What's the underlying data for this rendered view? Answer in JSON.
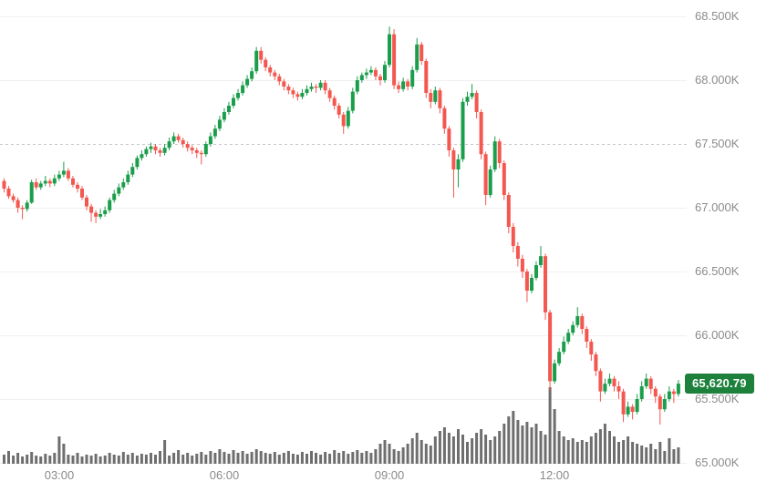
{
  "chart_data": {
    "type": "candlestick",
    "title": "",
    "interval_minutes": 5,
    "start_time": "02:00",
    "end_time": "14:15",
    "grid": "horizontal-only",
    "last_price": 65620.79,
    "last_price_label": "65,620.79",
    "open_price_line": {
      "value": 67500,
      "style": "dashed"
    },
    "y_axis": {
      "min": 65000,
      "max": 68500,
      "ticks": [
        {
          "value": 68500,
          "label": "68.500K"
        },
        {
          "value": 68000,
          "label": "68.000K"
        },
        {
          "value": 67500,
          "label": "67.500K"
        },
        {
          "value": 67000,
          "label": "67.000K"
        },
        {
          "value": 66500,
          "label": "66.500K"
        },
        {
          "value": 66000,
          "label": "66.000K"
        },
        {
          "value": 65500,
          "label": "65.500K"
        },
        {
          "value": 65000,
          "label": "65.000K"
        }
      ]
    },
    "x_axis": {
      "ticks": [
        {
          "index": 12,
          "label": "03:00"
        },
        {
          "index": 48,
          "label": "06:00"
        },
        {
          "index": 84,
          "label": "09:00"
        },
        {
          "index": 120,
          "label": "12:00"
        }
      ]
    },
    "candles": [
      [
        67210,
        67230,
        67120,
        67150
      ],
      [
        67150,
        67170,
        67070,
        67090
      ],
      [
        67090,
        67110,
        67040,
        67060
      ],
      [
        67060,
        67080,
        66960,
        67000
      ],
      [
        67000,
        67020,
        66910,
        66990
      ],
      [
        66990,
        67060,
        66970,
        67040
      ],
      [
        67040,
        67220,
        67030,
        67200
      ],
      [
        67200,
        67230,
        67140,
        67160
      ],
      [
        67160,
        67210,
        67140,
        67190
      ],
      [
        67190,
        67250,
        67170,
        67210
      ],
      [
        67210,
        67230,
        67160,
        67190
      ],
      [
        67190,
        67260,
        67170,
        67230
      ],
      [
        67230,
        67290,
        67210,
        67260
      ],
      [
        67260,
        67360,
        67240,
        67290
      ],
      [
        67290,
        67310,
        67210,
        67230
      ],
      [
        67230,
        67250,
        67160,
        67180
      ],
      [
        67180,
        67200,
        67120,
        67150
      ],
      [
        67150,
        67170,
        67060,
        67080
      ],
      [
        67080,
        67100,
        66980,
        67010
      ],
      [
        67010,
        67030,
        66890,
        66960
      ],
      [
        66960,
        66980,
        66880,
        66930
      ],
      [
        66930,
        66990,
        66910,
        66950
      ],
      [
        66950,
        67010,
        66930,
        66980
      ],
      [
        66980,
        67080,
        66960,
        67060
      ],
      [
        67060,
        67140,
        67040,
        67110
      ],
      [
        67110,
        67190,
        67090,
        67160
      ],
      [
        67160,
        67230,
        67140,
        67200
      ],
      [
        67200,
        67290,
        67180,
        67260
      ],
      [
        67260,
        67350,
        67240,
        67320
      ],
      [
        67320,
        67410,
        67300,
        67390
      ],
      [
        67390,
        67450,
        67370,
        67420
      ],
      [
        67420,
        67480,
        67400,
        67460
      ],
      [
        67460,
        67510,
        67430,
        67480
      ],
      [
        67480,
        67500,
        67420,
        67450
      ],
      [
        67450,
        67470,
        67400,
        67430
      ],
      [
        67430,
        67500,
        67410,
        67470
      ],
      [
        67470,
        67550,
        67450,
        67520
      ],
      [
        67520,
        67590,
        67500,
        67560
      ],
      [
        67560,
        67580,
        67510,
        67530
      ],
      [
        67530,
        67550,
        67470,
        67500
      ],
      [
        67500,
        67520,
        67440,
        67470
      ],
      [
        67470,
        67490,
        67420,
        67450
      ],
      [
        67450,
        67470,
        67390,
        67430
      ],
      [
        67430,
        67450,
        67340,
        67420
      ],
      [
        67420,
        67520,
        67400,
        67500
      ],
      [
        67500,
        67590,
        67480,
        67560
      ],
      [
        67560,
        67650,
        67540,
        67620
      ],
      [
        67620,
        67720,
        67600,
        67690
      ],
      [
        67690,
        67780,
        67670,
        67750
      ],
      [
        67750,
        67830,
        67730,
        67800
      ],
      [
        67800,
        67890,
        67780,
        67860
      ],
      [
        67860,
        67930,
        67840,
        67900
      ],
      [
        67900,
        67990,
        67880,
        67960
      ],
      [
        67960,
        68040,
        67940,
        68010
      ],
      [
        68010,
        68100,
        67990,
        68070
      ],
      [
        68070,
        68260,
        68050,
        68230
      ],
      [
        68230,
        68260,
        68130,
        68160
      ],
      [
        68160,
        68180,
        68070,
        68100
      ],
      [
        68100,
        68120,
        68030,
        68060
      ],
      [
        68060,
        68080,
        68000,
        68030
      ],
      [
        68030,
        68050,
        67960,
        67990
      ],
      [
        67990,
        68010,
        67920,
        67950
      ],
      [
        67950,
        67970,
        67890,
        67920
      ],
      [
        67920,
        67940,
        67860,
        67890
      ],
      [
        67890,
        67910,
        67840,
        67870
      ],
      [
        67870,
        67930,
        67850,
        67900
      ],
      [
        67900,
        67960,
        67880,
        67930
      ],
      [
        67930,
        67980,
        67910,
        67950
      ],
      [
        67950,
        67970,
        67900,
        67940
      ],
      [
        67940,
        68000,
        67920,
        67980
      ],
      [
        67980,
        68000,
        67890,
        67920
      ],
      [
        67920,
        67940,
        67830,
        67860
      ],
      [
        67860,
        67880,
        67770,
        67800
      ],
      [
        67800,
        67820,
        67700,
        67730
      ],
      [
        67730,
        67750,
        67580,
        67640
      ],
      [
        67640,
        67790,
        67620,
        67760
      ],
      [
        67760,
        67940,
        67740,
        67910
      ],
      [
        67910,
        68030,
        67890,
        68000
      ],
      [
        68000,
        68060,
        67980,
        68040
      ],
      [
        68040,
        68090,
        68010,
        68060
      ],
      [
        68060,
        68110,
        68040,
        68080
      ],
      [
        68080,
        68100,
        68000,
        68030
      ],
      [
        68030,
        68050,
        67960,
        68000
      ],
      [
        68000,
        68150,
        67980,
        68120
      ],
      [
        68120,
        68420,
        68100,
        68360
      ],
      [
        68360,
        68400,
        67930,
        67960
      ],
      [
        67960,
        67990,
        67900,
        67930
      ],
      [
        67930,
        68020,
        67910,
        67990
      ],
      [
        67990,
        68010,
        67920,
        67950
      ],
      [
        67950,
        68110,
        67930,
        68080
      ],
      [
        68080,
        68330,
        68060,
        68280
      ],
      [
        68280,
        68300,
        68120,
        68150
      ],
      [
        68150,
        68170,
        67860,
        67900
      ],
      [
        67900,
        67930,
        67780,
        67830
      ],
      [
        67830,
        67950,
        67810,
        67920
      ],
      [
        67920,
        67940,
        67740,
        67780
      ],
      [
        67780,
        67800,
        67580,
        67620
      ],
      [
        67620,
        67640,
        67400,
        67450
      ],
      [
        67450,
        67470,
        67080,
        67300
      ],
      [
        67300,
        67420,
        67160,
        67380
      ],
      [
        67380,
        67860,
        67360,
        67830
      ],
      [
        67830,
        67910,
        67800,
        67870
      ],
      [
        67870,
        67970,
        67850,
        67900
      ],
      [
        67900,
        67920,
        67700,
        67750
      ],
      [
        67750,
        67770,
        67380,
        67420
      ],
      [
        67420,
        67440,
        67020,
        67100
      ],
      [
        67100,
        67330,
        67080,
        67300
      ],
      [
        67300,
        67560,
        67280,
        67520
      ],
      [
        67520,
        67540,
        67310,
        67350
      ],
      [
        67350,
        67370,
        67060,
        67100
      ],
      [
        67100,
        67120,
        66800,
        66850
      ],
      [
        66850,
        66880,
        66650,
        66700
      ],
      [
        66700,
        66730,
        66540,
        66600
      ],
      [
        66600,
        66630,
        66450,
        66500
      ],
      [
        66500,
        66520,
        66260,
        66350
      ],
      [
        66350,
        66480,
        66330,
        66450
      ],
      [
        66450,
        66580,
        66430,
        66550
      ],
      [
        66550,
        66700,
        66530,
        66620
      ],
      [
        66620,
        66640,
        66120,
        66180
      ],
      [
        66180,
        66200,
        65570,
        65640
      ],
      [
        65640,
        65810,
        65620,
        65780
      ],
      [
        65780,
        65900,
        65760,
        65870
      ],
      [
        65870,
        65990,
        65850,
        65950
      ],
      [
        65950,
        66050,
        65930,
        66020
      ],
      [
        66020,
        66110,
        66000,
        66080
      ],
      [
        66080,
        66220,
        66060,
        66150
      ],
      [
        66150,
        66170,
        66010,
        66050
      ],
      [
        66050,
        66070,
        65900,
        65950
      ],
      [
        65950,
        65970,
        65800,
        65850
      ],
      [
        65850,
        65870,
        65680,
        65720
      ],
      [
        65720,
        65740,
        65480,
        65560
      ],
      [
        65560,
        65660,
        65540,
        65620
      ],
      [
        65620,
        65700,
        65600,
        65660
      ],
      [
        65660,
        65680,
        65560,
        65600
      ],
      [
        65600,
        65640,
        65500,
        65560
      ],
      [
        65560,
        65580,
        65320,
        65380
      ],
      [
        65380,
        65480,
        65360,
        65440
      ],
      [
        65440,
        65460,
        65340,
        65400
      ],
      [
        65400,
        65540,
        65380,
        65500
      ],
      [
        65500,
        65640,
        65480,
        65600
      ],
      [
        65600,
        65700,
        65580,
        65660
      ],
      [
        65660,
        65680,
        65540,
        65580
      ],
      [
        65580,
        65600,
        65470,
        65520
      ],
      [
        65520,
        65540,
        65300,
        65420
      ],
      [
        65420,
        65540,
        65400,
        65500
      ],
      [
        65500,
        65600,
        65480,
        65560
      ],
      [
        65560,
        65580,
        65470,
        65540
      ],
      [
        65540,
        65650,
        65520,
        65620.79
      ]
    ],
    "volume": [
      10,
      14,
      9,
      12,
      8,
      10,
      13,
      9,
      8,
      11,
      9,
      12,
      30,
      22,
      10,
      9,
      12,
      8,
      10,
      9,
      11,
      8,
      9,
      12,
      10,
      9,
      13,
      10,
      12,
      9,
      11,
      10,
      12,
      10,
      14,
      26,
      9,
      12,
      15,
      10,
      12,
      9,
      11,
      13,
      10,
      14,
      12,
      16,
      13,
      11,
      15,
      12,
      14,
      11,
      13,
      16,
      14,
      12,
      11,
      13,
      10,
      12,
      14,
      11,
      10,
      13,
      11,
      14,
      12,
      10,
      13,
      11,
      15,
      12,
      14,
      11,
      13,
      15,
      12,
      14,
      12,
      16,
      22,
      26,
      22,
      16,
      14,
      18,
      22,
      28,
      34,
      26,
      22,
      20,
      30,
      36,
      40,
      34,
      30,
      38,
      32,
      24,
      28,
      34,
      38,
      32,
      26,
      30,
      36,
      44,
      52,
      58,
      48,
      42,
      46,
      40,
      44,
      36,
      32,
      84,
      60,
      36,
      30,
      26,
      28,
      24,
      26,
      24,
      30,
      34,
      38,
      44,
      36,
      30,
      24,
      26,
      30,
      24,
      22,
      20,
      18,
      22,
      16,
      24,
      14,
      28,
      16,
      18
    ]
  },
  "colors": {
    "background": "#ffffff",
    "up": "#1b9e4b",
    "down": "#f35750",
    "volume": "#6e6e6e",
    "grid": "#f0f0f1",
    "grid_dashed": "#c8c8c8",
    "axis_text": "#8b8b8b",
    "tag_bg": "#1d813c",
    "tag_text": "#ffffff"
  }
}
